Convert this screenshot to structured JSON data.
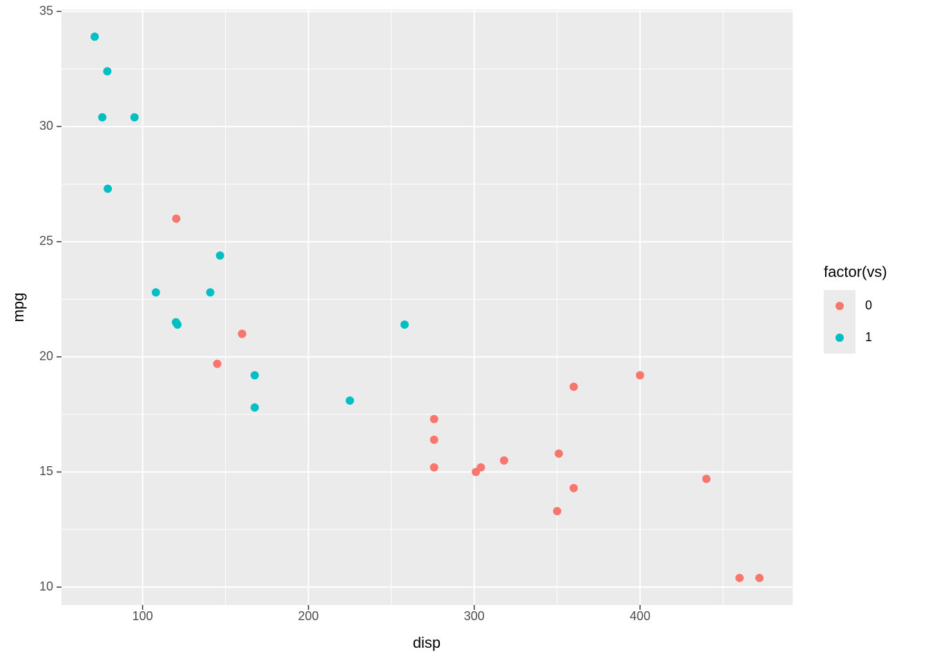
{
  "chart_data": {
    "type": "scatter",
    "x_label": "disp",
    "y_label": "mpg",
    "legend_title": "factor(vs)",
    "xlim": [
      51.055,
      492.045
    ],
    "ylim": [
      9.225,
      35.075
    ],
    "xticks": [
      100,
      200,
      300,
      400
    ],
    "yticks": [
      10,
      15,
      20,
      25,
      30,
      35
    ],
    "grid": true,
    "legend": "right",
    "series": [
      {
        "name": "0",
        "color": "#F8766D",
        "x": [
          160,
          160,
          360,
          360,
          275.8,
          275.8,
          275.8,
          472,
          460,
          440,
          318,
          304,
          350,
          400,
          120.3,
          351,
          145,
          301
        ],
        "values": [
          21,
          21,
          18.7,
          14.3,
          16.4,
          17.3,
          15.2,
          10.4,
          10.4,
          14.7,
          15.5,
          15.2,
          13.3,
          19.2,
          26,
          15.8,
          19.7,
          15
        ]
      },
      {
        "name": "1",
        "color": "#00BFC4",
        "x": [
          108,
          258,
          225,
          146.7,
          140.8,
          167.6,
          167.6,
          78.7,
          75.7,
          71.1,
          120.1,
          79,
          95.1,
          121
        ],
        "values": [
          22.8,
          21.4,
          18.1,
          24.4,
          22.8,
          19.2,
          17.8,
          32.4,
          30.4,
          33.9,
          21.5,
          27.3,
          30.4,
          21.4
        ]
      }
    ]
  }
}
